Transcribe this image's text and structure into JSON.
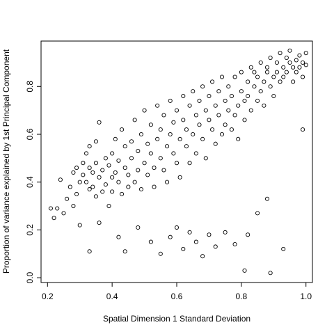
{
  "chart_data": {
    "type": "scatter",
    "title": "",
    "xlabel": "Spatial Dimension 1 Standard Deviation",
    "ylabel": "Proportion of variance explained by 1st Principal Component",
    "xlim": [
      0.18,
      1.02
    ],
    "ylim": [
      -0.02,
      0.99
    ],
    "x_ticks": [
      0.2,
      0.4,
      0.6,
      0.8,
      1.0
    ],
    "x_tick_labels": [
      "0.2",
      "0.4",
      "0.6",
      "0.8",
      "1.0"
    ],
    "y_ticks": [
      0.0,
      0.2,
      0.4,
      0.6,
      0.8
    ],
    "y_tick_labels": [
      "0.0",
      "0.2",
      "0.4",
      "0.6",
      "0.8"
    ],
    "grid": false,
    "legend": "none",
    "marker": "open-circle",
    "series": [
      {
        "x": [
          0.21,
          0.22,
          0.23,
          0.24,
          0.25,
          0.26,
          0.27,
          0.28,
          0.28,
          0.29,
          0.29,
          0.3,
          0.3,
          0.31,
          0.31,
          0.32,
          0.32,
          0.33,
          0.33,
          0.33,
          0.34,
          0.34,
          0.35,
          0.35,
          0.35,
          0.36,
          0.36,
          0.37,
          0.37,
          0.38,
          0.38,
          0.39,
          0.39,
          0.4,
          0.4,
          0.4,
          0.41,
          0.41,
          0.42,
          0.42,
          0.43,
          0.43,
          0.44,
          0.44,
          0.45,
          0.45,
          0.46,
          0.46,
          0.47,
          0.47,
          0.48,
          0.48,
          0.49,
          0.49,
          0.5,
          0.5,
          0.51,
          0.51,
          0.52,
          0.52,
          0.53,
          0.53,
          0.54,
          0.54,
          0.55,
          0.55,
          0.56,
          0.56,
          0.57,
          0.57,
          0.58,
          0.58,
          0.59,
          0.59,
          0.6,
          0.6,
          0.61,
          0.61,
          0.62,
          0.62,
          0.63,
          0.63,
          0.64,
          0.64,
          0.65,
          0.65,
          0.66,
          0.66,
          0.67,
          0.67,
          0.68,
          0.68,
          0.69,
          0.69,
          0.7,
          0.7,
          0.71,
          0.71,
          0.72,
          0.72,
          0.73,
          0.73,
          0.74,
          0.74,
          0.75,
          0.75,
          0.76,
          0.76,
          0.77,
          0.77,
          0.78,
          0.78,
          0.79,
          0.79,
          0.8,
          0.8,
          0.81,
          0.81,
          0.82,
          0.82,
          0.83,
          0.83,
          0.84,
          0.84,
          0.85,
          0.85,
          0.86,
          0.86,
          0.87,
          0.87,
          0.88,
          0.88,
          0.89,
          0.89,
          0.9,
          0.9,
          0.91,
          0.91,
          0.92,
          0.92,
          0.93,
          0.93,
          0.94,
          0.94,
          0.95,
          0.95,
          0.96,
          0.96,
          0.97,
          0.97,
          0.98,
          0.98,
          0.99,
          0.99,
          1.0,
          1.0,
          0.33,
          0.36,
          0.42,
          0.44,
          0.48,
          0.52,
          0.55,
          0.58,
          0.6,
          0.62,
          0.64,
          0.66,
          0.68,
          0.7,
          0.72,
          0.75,
          0.78,
          0.81,
          0.82,
          0.85,
          0.88,
          0.89,
          0.93,
          0.99
        ],
        "y": [
          0.29,
          0.25,
          0.29,
          0.41,
          0.27,
          0.33,
          0.38,
          0.44,
          0.3,
          0.46,
          0.35,
          0.4,
          0.22,
          0.43,
          0.48,
          0.4,
          0.52,
          0.37,
          0.55,
          0.46,
          0.44,
          0.38,
          0.48,
          0.34,
          0.57,
          0.42,
          0.65,
          0.45,
          0.36,
          0.5,
          0.39,
          0.47,
          0.3,
          0.42,
          0.52,
          0.36,
          0.44,
          0.58,
          0.4,
          0.49,
          0.35,
          0.62,
          0.46,
          0.55,
          0.43,
          0.38,
          0.5,
          0.57,
          0.4,
          0.66,
          0.53,
          0.45,
          0.6,
          0.37,
          0.48,
          0.7,
          0.43,
          0.56,
          0.52,
          0.64,
          0.46,
          0.38,
          0.58,
          0.72,
          0.5,
          0.62,
          0.45,
          0.68,
          0.55,
          0.4,
          0.6,
          0.74,
          0.52,
          0.65,
          0.48,
          0.7,
          0.58,
          0.42,
          0.66,
          0.76,
          0.55,
          0.62,
          0.72,
          0.48,
          0.6,
          0.78,
          0.68,
          0.52,
          0.64,
          0.74,
          0.58,
          0.8,
          0.7,
          0.5,
          0.66,
          0.76,
          0.62,
          0.82,
          0.56,
          0.72,
          0.68,
          0.78,
          0.6,
          0.84,
          0.74,
          0.64,
          0.7,
          0.8,
          0.62,
          0.76,
          0.84,
          0.68,
          0.72,
          0.58,
          0.78,
          0.86,
          0.74,
          0.66,
          0.82,
          0.76,
          0.88,
          0.7,
          0.8,
          0.86,
          0.74,
          0.84,
          0.78,
          0.9,
          0.82,
          0.72,
          0.86,
          0.88,
          0.8,
          0.92,
          0.84,
          0.76,
          0.9,
          0.86,
          0.82,
          0.94,
          0.88,
          0.84,
          0.92,
          0.86,
          0.9,
          0.95,
          0.88,
          0.82,
          0.91,
          0.86,
          0.93,
          0.88,
          0.9,
          0.84,
          0.94,
          0.89,
          0.11,
          0.23,
          0.17,
          0.11,
          0.21,
          0.15,
          0.1,
          0.17,
          0.21,
          0.12,
          0.19,
          0.15,
          0.09,
          0.18,
          0.13,
          0.19,
          0.14,
          0.03,
          0.18,
          0.27,
          0.33,
          0.02,
          0.12,
          0.62
        ]
      }
    ]
  }
}
